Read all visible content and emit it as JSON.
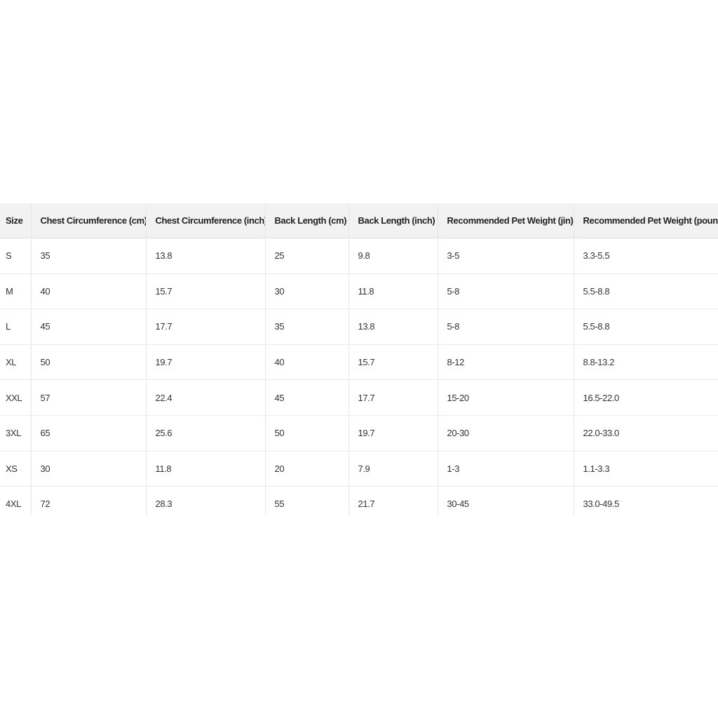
{
  "table": {
    "headers": [
      "Size",
      "Chest Circumference (cm)",
      "Chest Circumference (inch)",
      "Back Length (cm)",
      "Back Length (inch)",
      "Recommended Pet Weight (jin)",
      "Recommended Pet Weight (pound)"
    ],
    "rows": [
      [
        "S",
        "35",
        "13.8",
        "25",
        "9.8",
        "3-5",
        "3.3-5.5"
      ],
      [
        "M",
        "40",
        "15.7",
        "30",
        "11.8",
        "5-8",
        "5.5-8.8"
      ],
      [
        "L",
        "45",
        "17.7",
        "35",
        "13.8",
        "5-8",
        "5.5-8.8"
      ],
      [
        "XL",
        "50",
        "19.7",
        "40",
        "15.7",
        "8-12",
        "8.8-13.2"
      ],
      [
        "XXL",
        "57",
        "22.4",
        "45",
        "17.7",
        "15-20",
        "16.5-22.0"
      ],
      [
        "3XL",
        "65",
        "25.6",
        "50",
        "19.7",
        "20-30",
        "22.0-33.0"
      ],
      [
        "XS",
        "30",
        "11.8",
        "20",
        "7.9",
        "1-3",
        "1.1-3.3"
      ],
      [
        "4XL",
        "72",
        "28.3",
        "55",
        "21.7",
        "30-45",
        "33.0-49.5"
      ]
    ]
  },
  "colors": {
    "header_bg": "#f2f2f2",
    "border": "#e6e6e6",
    "text": "#333333"
  }
}
